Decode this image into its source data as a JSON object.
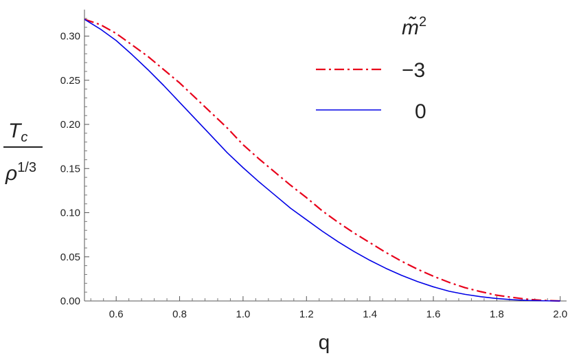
{
  "chart_data": {
    "type": "line",
    "xlabel": "q",
    "ylabel": {
      "numerator": "T",
      "numerator_sub": "c",
      "denominator": "ρ",
      "denominator_sup": "1/3"
    },
    "xlim": [
      0.5,
      2.02
    ],
    "ylim": [
      0,
      0.33
    ],
    "xticks": [
      "0.6",
      "0.8",
      "1.0",
      "1.2",
      "1.4",
      "1.6",
      "1.8",
      "2.0"
    ],
    "yticks": [
      "0.00",
      "0.05",
      "0.10",
      "0.15",
      "0.20",
      "0.25",
      "0.30"
    ],
    "grid": false,
    "legend": {
      "title": "m̃",
      "title_sup": "2",
      "placement": "top-right"
    },
    "series": [
      {
        "name": "−3",
        "color": "#e8001a",
        "style": "dash-dot",
        "points": [
          [
            0.5,
            0.319
          ],
          [
            0.55,
            0.313
          ],
          [
            0.6,
            0.303
          ],
          [
            0.65,
            0.29
          ],
          [
            0.7,
            0.277
          ],
          [
            0.75,
            0.262
          ],
          [
            0.8,
            0.247
          ],
          [
            0.85,
            0.23
          ],
          [
            0.9,
            0.213
          ],
          [
            0.95,
            0.196
          ],
          [
            1.0,
            0.177
          ],
          [
            1.05,
            0.161
          ],
          [
            1.1,
            0.146
          ],
          [
            1.15,
            0.131
          ],
          [
            1.2,
            0.117
          ],
          [
            1.25,
            0.102
          ],
          [
            1.3,
            0.089
          ],
          [
            1.35,
            0.077
          ],
          [
            1.4,
            0.066
          ],
          [
            1.45,
            0.055
          ],
          [
            1.5,
            0.045
          ],
          [
            1.55,
            0.036
          ],
          [
            1.6,
            0.028
          ],
          [
            1.65,
            0.021
          ],
          [
            1.7,
            0.015
          ],
          [
            1.75,
            0.0105
          ],
          [
            1.8,
            0.0065
          ],
          [
            1.85,
            0.004
          ],
          [
            1.9,
            0.0018
          ],
          [
            1.95,
            0.0006
          ],
          [
            2.0,
            0.0
          ]
        ]
      },
      {
        "name": "0",
        "color": "#0000e6",
        "style": "solid",
        "points": [
          [
            0.5,
            0.319
          ],
          [
            0.55,
            0.308
          ],
          [
            0.6,
            0.295
          ],
          [
            0.65,
            0.279
          ],
          [
            0.7,
            0.262
          ],
          [
            0.75,
            0.244
          ],
          [
            0.8,
            0.225
          ],
          [
            0.85,
            0.206
          ],
          [
            0.9,
            0.187
          ],
          [
            0.95,
            0.168
          ],
          [
            1.0,
            0.151
          ],
          [
            1.05,
            0.135
          ],
          [
            1.1,
            0.12
          ],
          [
            1.15,
            0.105
          ],
          [
            1.2,
            0.092
          ],
          [
            1.25,
            0.079
          ],
          [
            1.3,
            0.067
          ],
          [
            1.35,
            0.056
          ],
          [
            1.4,
            0.046
          ],
          [
            1.45,
            0.037
          ],
          [
            1.5,
            0.029
          ],
          [
            1.55,
            0.022
          ],
          [
            1.6,
            0.016
          ],
          [
            1.65,
            0.011
          ],
          [
            1.7,
            0.0075
          ],
          [
            1.75,
            0.0048
          ],
          [
            1.8,
            0.0028
          ],
          [
            1.85,
            0.0014
          ],
          [
            1.9,
            0.0006
          ],
          [
            1.95,
            0.0002
          ],
          [
            2.0,
            0.0
          ]
        ]
      }
    ]
  }
}
